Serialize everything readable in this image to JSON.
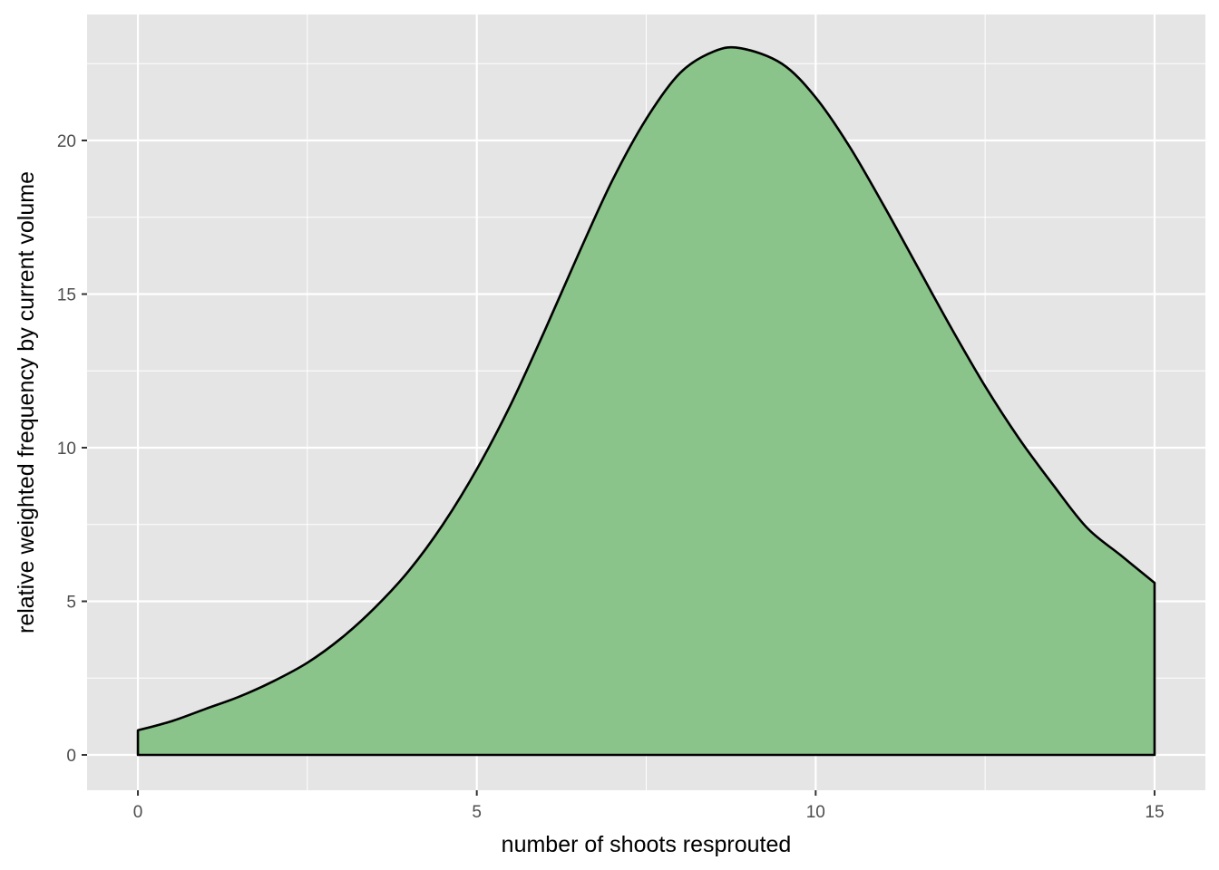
{
  "chart_data": {
    "type": "area",
    "title": "",
    "xlabel": "number of shoots resprouted",
    "ylabel": "relative weighted frequency by current volume",
    "xlim": [
      -0.75,
      15.75
    ],
    "ylim": [
      -1.15,
      24.1
    ],
    "x_ticks": [
      0,
      5,
      10,
      15
    ],
    "x_tick_labels": [
      "0",
      "5",
      "10",
      "15"
    ],
    "y_ticks": [
      0,
      5,
      10,
      15,
      20
    ],
    "y_tick_labels": [
      "0",
      "5",
      "10",
      "15",
      "20"
    ],
    "grid": true,
    "legend": "none",
    "series": [
      {
        "x": [
          0,
          0.5,
          1,
          1.5,
          2,
          2.5,
          3,
          3.5,
          4,
          4.5,
          5,
          5.5,
          6,
          6.5,
          7,
          7.5,
          8,
          8.5,
          8.9,
          9.5,
          10,
          10.5,
          11,
          11.5,
          12,
          12.5,
          13,
          13.5,
          14,
          14.5,
          15
        ],
        "y": [
          0.8,
          1.1,
          1.5,
          1.9,
          2.4,
          3.0,
          3.8,
          4.8,
          6.0,
          7.5,
          9.3,
          11.4,
          13.8,
          16.3,
          18.7,
          20.7,
          22.2,
          22.9,
          23.0,
          22.5,
          21.4,
          19.8,
          17.9,
          15.9,
          13.9,
          12.0,
          10.3,
          8.8,
          7.4,
          6.5,
          5.6
        ]
      }
    ],
    "colors": {
      "panel": "#e5e5e5",
      "grid": "#ffffff",
      "fill": "#8bc48a",
      "outline": "#000000",
      "tick_text": "#4d4d4d",
      "axis_title": "#000000"
    }
  }
}
